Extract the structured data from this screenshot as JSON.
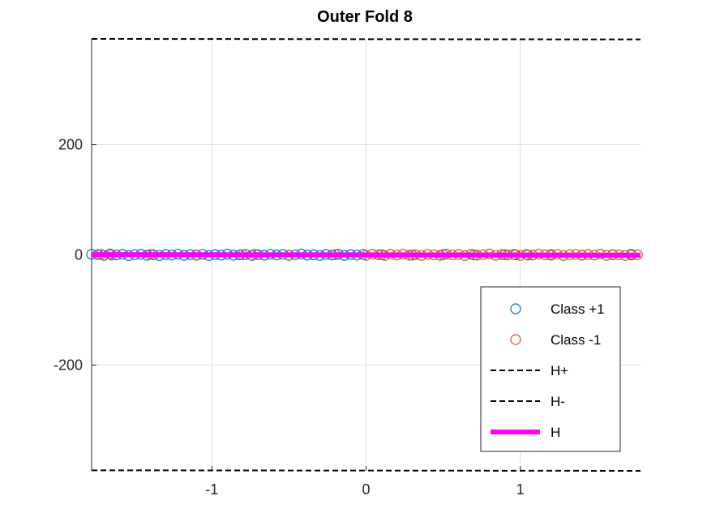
{
  "chart_data": {
    "type": "scatter",
    "title": "Outer Fold 8",
    "xlabel": "",
    "ylabel": "",
    "xlim": [
      -1.78,
      1.78
    ],
    "ylim": [
      -392,
      392
    ],
    "x_ticks": [
      -1,
      0,
      1
    ],
    "x_tick_labels": [
      "-1",
      "0",
      "1"
    ],
    "y_ticks": [
      -200,
      0,
      200
    ],
    "y_tick_labels": [
      "-200",
      "0",
      "200"
    ],
    "grid": true,
    "legend_position": "lower-right",
    "series": [
      {
        "name": "Class +1",
        "kind": "markers",
        "marker": "circle",
        "color": "#0072BD",
        "x": [
          -1.78,
          -1.74,
          -1.7,
          -1.66,
          -1.62,
          -1.58,
          -1.54,
          -1.5,
          -1.46,
          -1.42,
          -1.38,
          -1.34,
          -1.3,
          -1.26,
          -1.22,
          -1.18,
          -1.14,
          -1.1,
          -1.06,
          -1.02,
          -0.98,
          -0.94,
          -0.9,
          -0.86,
          -0.82,
          -0.78,
          -0.74,
          -0.7,
          -0.66,
          -0.62,
          -0.58,
          -0.54,
          -0.5,
          -0.46,
          -0.42,
          -0.38,
          -0.34,
          -0.3,
          -0.26,
          -0.22,
          -0.18,
          -0.14,
          -0.1,
          -0.06,
          -0.02,
          0.1,
          0.3,
          0.5,
          0.7,
          0.9,
          0.97,
          1.05,
          1.2,
          1.4,
          1.6,
          1.72
        ],
        "y": [
          1.2,
          0.4,
          -0.8,
          1.6,
          -0.2,
          0.9,
          -1.3,
          0.3,
          1.1,
          -0.6,
          0.2,
          -1.0,
          0.7,
          -0.3,
          1.4,
          -0.9,
          0.5,
          -0.1,
          1.0,
          -1.2,
          0.6,
          -0.4,
          1.3,
          -0.7,
          0.1,
          0.8,
          -1.1,
          0.4,
          -0.5,
          1.2,
          -0.2,
          0.9,
          -0.8,
          0.3,
          1.5,
          -0.6,
          0.2,
          -1.0,
          0.7,
          -0.3,
          1.1,
          -0.9,
          0.5,
          -0.4,
          0.8,
          0.3,
          -0.5,
          0.6,
          -0.2,
          0.4,
          0.1,
          -0.3,
          0.5,
          -0.6,
          0.2,
          -0.1
        ]
      },
      {
        "name": "Class -1",
        "kind": "markers",
        "marker": "circle",
        "color": "#D95319",
        "x": [
          -1.72,
          -1.65,
          -1.4,
          -1.1,
          -0.8,
          -0.72,
          -0.5,
          -0.2,
          0.0,
          0.04,
          0.08,
          0.12,
          0.16,
          0.2,
          0.24,
          0.28,
          0.32,
          0.36,
          0.4,
          0.44,
          0.48,
          0.52,
          0.56,
          0.6,
          0.64,
          0.68,
          0.72,
          0.76,
          0.8,
          0.84,
          0.88,
          0.92,
          0.96,
          1.0,
          1.04,
          1.08,
          1.12,
          1.16,
          1.2,
          1.24,
          1.28,
          1.32,
          1.36,
          1.4,
          1.44,
          1.48,
          1.52,
          1.56,
          1.6,
          1.64,
          1.68,
          1.72,
          1.76
        ],
        "y": [
          0.5,
          -0.4,
          0.8,
          -0.6,
          0.3,
          1.1,
          -0.5,
          0.4,
          -0.8,
          1.3,
          0.2,
          -1.1,
          0.9,
          -0.3,
          1.5,
          -0.7,
          0.6,
          -1.2,
          1.0,
          0.1,
          -0.9,
          1.4,
          -0.2,
          0.7,
          -1.3,
          1.2,
          -0.5,
          0.3,
          1.6,
          -0.8,
          0.5,
          -0.1,
          1.1,
          -1.0,
          0.8,
          -0.4,
          1.3,
          0.2,
          -0.7,
          0.9,
          -1.2,
          0.4,
          1.0,
          -0.6,
          0.7,
          -0.3,
          1.5,
          -0.9,
          0.6,
          0.1,
          -1.1,
          1.2,
          0.3
        ]
      },
      {
        "name": "H+",
        "kind": "line",
        "style": "dashed",
        "color": "#000000",
        "x": [
          -1.78,
          1.78
        ],
        "y": [
          392,
          391
        ]
      },
      {
        "name": "H-",
        "kind": "line",
        "style": "dashed",
        "color": "#000000",
        "x": [
          -1.78,
          1.78
        ],
        "y": [
          -391,
          -392
        ]
      },
      {
        "name": "H",
        "kind": "line",
        "style": "solid",
        "color": "#FF00FF",
        "x": [
          -1.78,
          1.78
        ],
        "y": [
          0.5,
          -0.5
        ]
      }
    ]
  }
}
